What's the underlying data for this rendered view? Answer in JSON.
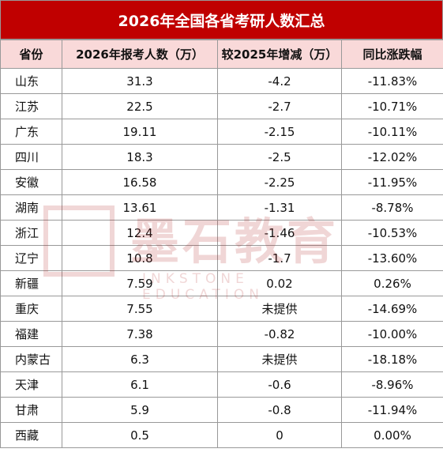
{
  "header": {
    "title": "2026年全国各省考研人数汇总"
  },
  "watermark": {
    "name": "墨石教育",
    "subtitle": "INKSTONE EDUCATION"
  },
  "table": {
    "columns": [
      "省份",
      "2026年报考人数（万）",
      "较2025年增减（万）",
      "同比涨跌幅"
    ],
    "rows": [
      [
        "山东",
        "31.3",
        "-4.2",
        "-11.83%"
      ],
      [
        "江苏",
        "22.5",
        "-2.7",
        "-10.71%"
      ],
      [
        "广东",
        "19.11",
        "-2.15",
        "-10.11%"
      ],
      [
        "四川",
        "18.3",
        "-2.5",
        "-12.02%"
      ],
      [
        "安徽",
        "16.58",
        "-2.25",
        "-11.95%"
      ],
      [
        "湖南",
        "13.61",
        "-1.31",
        "-8.78%"
      ],
      [
        "浙江",
        "12.4",
        "-1.46",
        "-10.53%"
      ],
      [
        "辽宁",
        "10.8",
        "-1.7",
        "-13.60%"
      ],
      [
        "新疆",
        "7.59",
        "0.02",
        "0.26%"
      ],
      [
        "重庆",
        "7.55",
        "未提供",
        "-14.69%"
      ],
      [
        "福建",
        "7.38",
        "-0.82",
        "-10.00%"
      ],
      [
        "内蒙古",
        "6.3",
        "未提供",
        "-18.18%"
      ],
      [
        "天津",
        "6.1",
        "-0.6",
        "-8.96%"
      ],
      [
        "甘肃",
        "5.9",
        "-0.8",
        "-11.94%"
      ],
      [
        "西藏",
        "0.5",
        "0",
        "0.00%"
      ]
    ]
  }
}
